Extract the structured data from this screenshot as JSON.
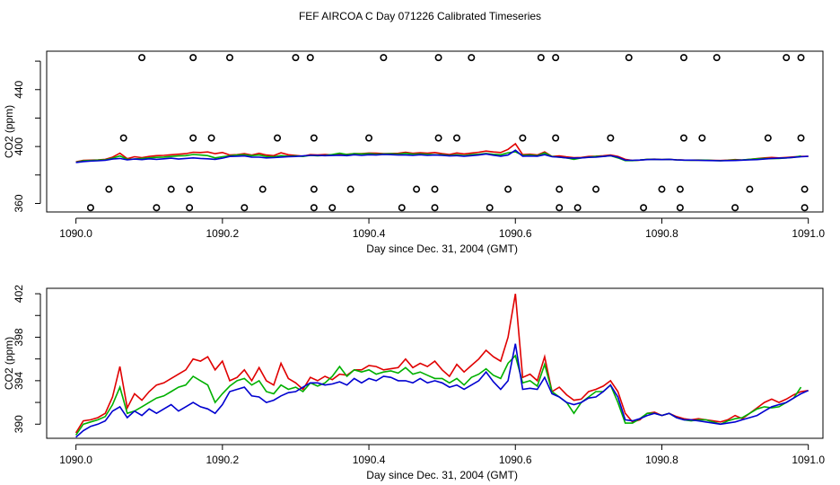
{
  "figure_title": "FEF AIRCOA C  Day 071226  Calibrated Timeseries",
  "chart_data": [
    {
      "type": "line+scatter",
      "title": "",
      "xlabel": "Day since Dec. 31, 2004 (GMT)",
      "ylabel": "CO2 (ppm)",
      "xlim": [
        1089.96,
        1091.02
      ],
      "ylim": [
        354,
        467
      ],
      "xticks": [
        1090.0,
        1090.2,
        1090.4,
        1090.6,
        1090.8,
        1091.0
      ],
      "xtick_labels": [
        "1090.0",
        "1090.2",
        "1090.4",
        "1090.6",
        "1090.8",
        "1091.0"
      ],
      "yticks": [
        360,
        380,
        400,
        420,
        440,
        460
      ],
      "ytick_labels": [
        "360",
        "",
        "400",
        "",
        "440",
        ""
      ],
      "series_colors": [
        "#e00000",
        "#00b000",
        "#0000d0"
      ],
      "calibration_points": {
        "marker": "open-circle",
        "top_level": 462.5,
        "top_x": [
          1090.09,
          1090.16,
          1090.21,
          1090.3,
          1090.32,
          1090.42,
          1090.495,
          1090.54,
          1090.635,
          1090.655,
          1090.755,
          1090.83,
          1090.875,
          1090.97,
          1090.99
        ],
        "mid_level": 406,
        "mid_x": [
          1090.065,
          1090.16,
          1090.185,
          1090.275,
          1090.325,
          1090.4,
          1090.495,
          1090.52,
          1090.61,
          1090.655,
          1090.73,
          1090.83,
          1090.855,
          1090.945,
          1090.99
        ],
        "lower_level": 370,
        "lower_x": [
          1090.045,
          1090.13,
          1090.155,
          1090.255,
          1090.325,
          1090.375,
          1090.465,
          1090.49,
          1090.59,
          1090.66,
          1090.71,
          1090.8,
          1090.825,
          1090.92,
          1090.995
        ],
        "bottom_level": 357,
        "bottom_x": [
          1090.02,
          1090.11,
          1090.155,
          1090.23,
          1090.325,
          1090.35,
          1090.445,
          1090.49,
          1090.565,
          1090.66,
          1090.685,
          1090.775,
          1090.825,
          1090.9,
          1090.995
        ]
      }
    },
    {
      "type": "line",
      "title": "",
      "xlabel": "Day since Dec. 31, 2004 (GMT)",
      "ylabel": "CO2 (ppm)",
      "xlim": [
        1089.96,
        1091.02
      ],
      "ylim": [
        388.7,
        402.5
      ],
      "xticks": [
        1090.0,
        1090.2,
        1090.4,
        1090.6,
        1090.8,
        1091.0
      ],
      "xtick_labels": [
        "1090.0",
        "1090.2",
        "1090.4",
        "1090.6",
        "1090.8",
        "1091.0"
      ],
      "yticks": [
        390,
        392,
        394,
        396,
        398,
        400,
        402
      ],
      "ytick_labels": [
        "390",
        "",
        "394",
        "",
        "398",
        "",
        "402"
      ],
      "x": [
        1090.0,
        1090.01,
        1090.02,
        1090.03,
        1090.04,
        1090.05,
        1090.06,
        1090.07,
        1090.08,
        1090.09,
        1090.1,
        1090.11,
        1090.12,
        1090.13,
        1090.14,
        1090.15,
        1090.16,
        1090.17,
        1090.18,
        1090.19,
        1090.2,
        1090.21,
        1090.22,
        1090.23,
        1090.24,
        1090.25,
        1090.26,
        1090.27,
        1090.28,
        1090.29,
        1090.3,
        1090.31,
        1090.32,
        1090.33,
        1090.34,
        1090.35,
        1090.36,
        1090.37,
        1090.38,
        1090.39,
        1090.4,
        1090.41,
        1090.42,
        1090.43,
        1090.44,
        1090.45,
        1090.46,
        1090.47,
        1090.48,
        1090.49,
        1090.5,
        1090.51,
        1090.52,
        1090.53,
        1090.54,
        1090.55,
        1090.56,
        1090.57,
        1090.58,
        1090.59,
        1090.6,
        1090.61,
        1090.62,
        1090.63,
        1090.64,
        1090.65,
        1090.66,
        1090.67,
        1090.68,
        1090.69,
        1090.7,
        1090.71,
        1090.72,
        1090.73,
        1090.74,
        1090.75,
        1090.76,
        1090.77,
        1090.78,
        1090.79,
        1090.8,
        1090.81,
        1090.82,
        1090.83,
        1090.84,
        1090.85,
        1090.86,
        1090.87,
        1090.88,
        1090.89,
        1090.9,
        1090.91,
        1090.92,
        1090.93,
        1090.94,
        1090.95,
        1090.96,
        1090.97,
        1090.98,
        1090.99,
        1091.0
      ],
      "series": [
        {
          "name": "red",
          "color": "#e00000",
          "values": [
            389.2,
            390.3,
            390.4,
            390.6,
            391.0,
            392.5,
            395.3,
            391.5,
            392.8,
            392.2,
            393.0,
            393.6,
            393.8,
            394.2,
            394.6,
            395.0,
            396.0,
            395.8,
            396.2,
            395.0,
            395.8,
            394.0,
            394.3,
            395.0,
            394.0,
            395.2,
            394.0,
            393.6,
            395.6,
            394.2,
            393.8,
            393.2,
            394.3,
            394.0,
            394.4,
            394.1,
            394.6,
            394.5,
            395.0,
            395.0,
            395.4,
            395.3,
            395.0,
            395.1,
            395.2,
            396.0,
            395.2,
            395.6,
            395.3,
            395.8,
            395.0,
            394.4,
            395.5,
            394.8,
            395.4,
            396.0,
            396.8,
            396.2,
            395.8,
            398.0,
            402.0,
            394.3,
            394.6,
            394.0,
            396.2,
            393.0,
            393.4,
            392.7,
            392.2,
            392.3,
            393.0,
            393.2,
            393.5,
            394.0,
            393.0,
            391.0,
            390.2,
            390.4,
            391.0,
            391.1,
            390.8,
            391.0,
            390.7,
            390.5,
            390.4,
            390.5,
            390.4,
            390.3,
            390.2,
            390.4,
            390.8,
            390.5,
            391.0,
            391.5,
            392.0,
            392.3,
            392.0,
            392.3,
            392.7,
            393.0,
            393.1
          ]
        },
        {
          "name": "green",
          "color": "#00b000",
          "values": [
            389.0,
            390.0,
            390.2,
            390.4,
            390.7,
            391.8,
            393.4,
            391.0,
            391.2,
            391.6,
            392.0,
            392.4,
            392.6,
            393.0,
            393.4,
            393.6,
            394.4,
            394.0,
            393.6,
            392.0,
            392.8,
            393.5,
            394.0,
            394.2,
            393.6,
            394.0,
            393.0,
            392.8,
            393.6,
            393.2,
            393.4,
            393.0,
            393.8,
            393.5,
            393.8,
            394.4,
            395.3,
            394.4,
            395.0,
            394.8,
            395.0,
            394.6,
            394.8,
            394.9,
            394.7,
            395.2,
            394.6,
            394.8,
            394.5,
            394.2,
            394.2,
            393.8,
            394.2,
            393.6,
            394.3,
            394.6,
            395.1,
            394.5,
            394.2,
            395.6,
            396.3,
            393.8,
            394.0,
            393.5,
            395.5,
            393.0,
            392.5,
            392.0,
            391.0,
            392.0,
            392.5,
            393.0,
            393.0,
            393.6,
            392.0,
            390.1,
            390.1,
            390.5,
            391.0,
            391.0,
            390.8,
            391.0,
            390.6,
            390.4,
            390.3,
            390.4,
            390.4,
            390.2,
            390.0,
            390.3,
            390.5,
            390.6,
            391.0,
            391.4,
            391.6,
            391.5,
            391.6,
            392.0,
            392.4,
            393.4,
            null
          ]
        },
        {
          "name": "blue",
          "color": "#0000d0",
          "values": [
            388.8,
            389.4,
            389.8,
            390.0,
            390.3,
            391.2,
            391.6,
            390.6,
            391.2,
            390.8,
            391.4,
            391.0,
            391.4,
            391.8,
            391.2,
            391.6,
            392.0,
            391.6,
            391.4,
            391.0,
            391.8,
            393.0,
            393.2,
            393.4,
            392.6,
            392.5,
            392.0,
            392.2,
            392.6,
            392.9,
            393.0,
            393.4,
            393.8,
            393.8,
            393.6,
            393.7,
            393.9,
            393.6,
            394.2,
            393.8,
            394.2,
            394.0,
            394.4,
            394.3,
            394.0,
            394.0,
            393.8,
            394.2,
            393.8,
            394.0,
            393.8,
            393.4,
            393.6,
            393.2,
            393.6,
            394.0,
            394.8,
            393.9,
            393.2,
            394.0,
            397.4,
            393.2,
            393.3,
            393.2,
            394.3,
            392.8,
            392.5,
            392.0,
            391.8,
            392.0,
            392.4,
            392.5,
            393.0,
            393.6,
            392.5,
            390.4,
            390.3,
            390.5,
            390.8,
            391.0,
            390.8,
            391.0,
            390.6,
            390.4,
            390.4,
            390.3,
            390.2,
            390.1,
            390.0,
            390.1,
            390.2,
            390.4,
            390.6,
            390.8,
            391.2,
            391.6,
            391.8,
            392.0,
            392.4,
            392.8,
            393.1
          ]
        }
      ]
    }
  ]
}
